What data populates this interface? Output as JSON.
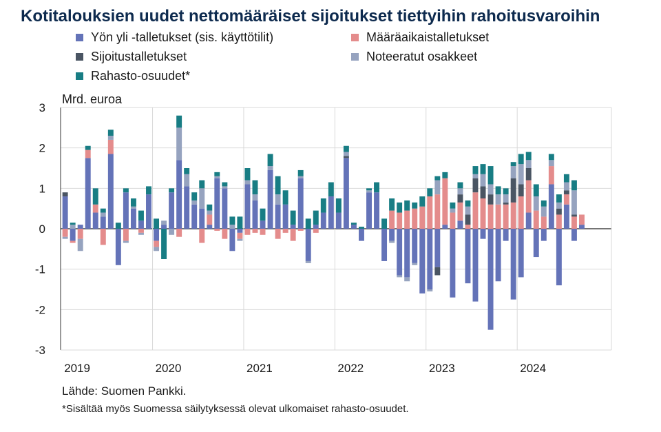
{
  "title": "Kotitalouksien uudet nettomääräiset sijoitukset tiettyihin rahoitusvaroihin",
  "unit_label": "Mrd. euroa",
  "source": "Lähde: Suomen Pankki.",
  "footnote": "*Sisältää myös Suomessa säilytyksessä olevat ulkomaiset rahasto-osuudet.",
  "colors": {
    "overnight": "#6473b8",
    "fixed_term": "#e48c8c",
    "investment": "#4a5563",
    "quoted": "#96a3bf",
    "funds": "#187d84"
  },
  "chart_data": {
    "type": "bar",
    "stacked": true,
    "ylim": [
      -3,
      3
    ],
    "yticks": [
      -3,
      -2,
      -1,
      0,
      1,
      2,
      3
    ],
    "ylabel": "Mrd. euroa",
    "xlabels": [
      "2019",
      "2020",
      "2021",
      "2022",
      "2023",
      "2024"
    ],
    "xlabel_positions": [
      0,
      12,
      24,
      36,
      48,
      60
    ],
    "grid": true,
    "legend": "top",
    "categories": [
      "2019-01",
      "2019-02",
      "2019-03",
      "2019-04",
      "2019-05",
      "2019-06",
      "2019-07",
      "2019-08",
      "2019-09",
      "2019-10",
      "2019-11",
      "2019-12",
      "2020-01",
      "2020-02",
      "2020-03",
      "2020-04",
      "2020-05",
      "2020-06",
      "2020-07",
      "2020-08",
      "2020-09",
      "2020-10",
      "2020-11",
      "2020-12",
      "2021-01",
      "2021-02",
      "2021-03",
      "2021-04",
      "2021-05",
      "2021-06",
      "2021-07",
      "2021-08",
      "2021-09",
      "2021-10",
      "2021-11",
      "2021-12",
      "2022-01",
      "2022-02",
      "2022-03",
      "2022-04",
      "2022-05",
      "2022-06",
      "2022-07",
      "2022-08",
      "2022-09",
      "2022-10",
      "2022-11",
      "2022-12",
      "2023-01",
      "2023-02",
      "2023-03",
      "2023-04",
      "2023-05",
      "2023-06",
      "2023-07",
      "2023-08",
      "2023-09",
      "2023-10",
      "2023-11",
      "2023-12",
      "2024-01",
      "2024-02",
      "2024-03",
      "2024-04",
      "2024-05",
      "2024-06",
      "2024-07",
      "2024-08",
      "2024-09",
      "2024-10",
      "2024-11",
      "2024-12"
    ],
    "series": [
      {
        "name": "Yön yli -talletukset (sis. käyttötilit)",
        "key": "overnight",
        "values": [
          0.8,
          -0.3,
          0.1,
          1.75,
          0.4,
          0.3,
          1.85,
          -0.9,
          0.9,
          0.5,
          0.2,
          0.85,
          -0.3,
          0.1,
          0.9,
          1.7,
          1.05,
          0.6,
          0.5,
          0.1,
          1.25,
          1.0,
          -0.55,
          -0.1,
          1.1,
          0.7,
          0.2,
          1.45,
          0.6,
          0.6,
          0.1,
          1.25,
          -0.8,
          0.1,
          0.4,
          0.8,
          0.4,
          1.75,
          0.1,
          -0.3,
          0.9,
          0.9,
          -0.8,
          -0.3,
          -1.15,
          -1.2,
          -0.85,
          -1.6,
          -1.5,
          -0.95,
          0.1,
          -1.7,
          0.2,
          -1.35,
          -1.8,
          -0.25,
          -2.5,
          -1.3,
          -0.3,
          -1.75,
          -1.2,
          0.4,
          -0.7,
          -0.3,
          1.1,
          -1.4,
          0.6,
          -0.3,
          0.1,
          0.0,
          0.0,
          0.0
        ]
      },
      {
        "name": "Määräaikaistalletukset",
        "key": "fixed_term",
        "values": [
          -0.2,
          -0.05,
          -0.25,
          0.2,
          0.2,
          -0.4,
          0.35,
          0.0,
          -0.3,
          0.0,
          -0.1,
          0.0,
          -0.15,
          0.0,
          0.0,
          -0.2,
          0.0,
          0.0,
          -0.35,
          0.25,
          -0.05,
          -0.25,
          0.0,
          -0.15,
          -0.15,
          -0.1,
          -0.15,
          0.0,
          -0.25,
          -0.1,
          -0.3,
          -0.05,
          0.0,
          -0.1,
          0.0,
          0.0,
          0.0,
          0.0,
          0.0,
          0.0,
          0.0,
          0.0,
          0.0,
          0.45,
          0.4,
          0.45,
          0.5,
          0.55,
          0.8,
          0.85,
          1.15,
          0.4,
          0.45,
          0.1,
          0.9,
          0.75,
          0.6,
          0.6,
          0.6,
          0.65,
          0.8,
          0.8,
          0.45,
          0.3,
          0.45,
          0.35,
          0.25,
          0.3,
          0.25,
          0.0,
          0.0,
          0.0
        ]
      },
      {
        "name": "Sijoitustalletukset",
        "key": "investment",
        "values": [
          0.1,
          0.0,
          0.0,
          0.0,
          0.0,
          0.0,
          0.0,
          0.0,
          0.0,
          0.0,
          0.0,
          0.0,
          0.0,
          0.0,
          0.0,
          0.0,
          0.0,
          0.0,
          0.0,
          0.0,
          0.0,
          0.0,
          0.0,
          0.0,
          0.0,
          0.0,
          0.0,
          0.0,
          0.0,
          0.0,
          0.0,
          0.0,
          0.0,
          0.0,
          0.0,
          0.0,
          0.0,
          0.05,
          0.0,
          0.0,
          0.0,
          0.0,
          0.0,
          0.0,
          0.0,
          0.0,
          0.0,
          0.0,
          0.0,
          -0.2,
          0.0,
          0.0,
          0.2,
          0.25,
          0.35,
          0.3,
          0.25,
          0.0,
          0.05,
          0.6,
          0.3,
          0.3,
          0.0,
          0.0,
          0.0,
          0.15,
          0.1,
          0.05,
          0.0,
          0.0,
          0.0,
          0.0
        ]
      },
      {
        "name": "Noteeratut osakkeet",
        "key": "quoted",
        "values": [
          -0.05,
          0.1,
          -0.3,
          0.0,
          0.0,
          0.1,
          0.1,
          0.0,
          -0.05,
          0.05,
          -0.05,
          0.0,
          -0.1,
          0.1,
          -0.15,
          0.8,
          0.3,
          0.1,
          0.5,
          0.1,
          0.05,
          0.05,
          0.1,
          -0.05,
          0.1,
          0.15,
          0.0,
          0.1,
          0.25,
          0.0,
          0.0,
          0.05,
          -0.05,
          0.0,
          0.0,
          0.0,
          0.0,
          0.1,
          0.0,
          0.0,
          0.05,
          0.0,
          0.0,
          -0.05,
          -0.05,
          -0.1,
          -0.05,
          0.0,
          -0.05,
          0.35,
          0.0,
          0.1,
          0.15,
          0.2,
          0.1,
          0.3,
          0.25,
          0.25,
          0.2,
          0.3,
          0.5,
          0.2,
          0.35,
          0.25,
          0.15,
          0.15,
          0.2,
          0.6,
          0.0,
          0.0,
          0.0,
          0.0
        ]
      },
      {
        "name": "Rahasto-osuudet*",
        "key": "funds",
        "values": [
          0.0,
          0.05,
          0.0,
          0.1,
          0.4,
          0.1,
          0.15,
          0.15,
          0.1,
          0.2,
          0.25,
          0.2,
          0.25,
          -0.75,
          0.1,
          0.3,
          0.15,
          0.2,
          0.2,
          0.15,
          0.1,
          0.1,
          0.2,
          0.3,
          0.3,
          0.35,
          0.3,
          0.3,
          0.45,
          0.35,
          0.35,
          0.15,
          0.25,
          0.35,
          0.35,
          0.35,
          0.35,
          0.15,
          0.05,
          0.05,
          0.05,
          0.25,
          0.25,
          0.3,
          0.25,
          0.25,
          0.15,
          0.25,
          0.2,
          0.1,
          0.15,
          0.15,
          0.15,
          0.15,
          0.2,
          0.25,
          0.45,
          0.2,
          0.15,
          0.1,
          0.25,
          0.2,
          0.3,
          0.15,
          0.15,
          0.2,
          0.2,
          0.25,
          0.0,
          0.0,
          0.0,
          0.0
        ]
      }
    ],
    "negative_stack_overrides": {
      "comment_free": true
    }
  },
  "legend_items": [
    {
      "label": "Yön yli -talletukset (sis. käyttötilit)",
      "key": "overnight"
    },
    {
      "label": "Määräaikaistalletukset",
      "key": "fixed_term"
    },
    {
      "label": "Sijoitustalletukset",
      "key": "investment"
    },
    {
      "label": "Noteeratut osakkeet",
      "key": "quoted"
    },
    {
      "label": "Rahasto-osuudet*",
      "key": "funds"
    }
  ]
}
